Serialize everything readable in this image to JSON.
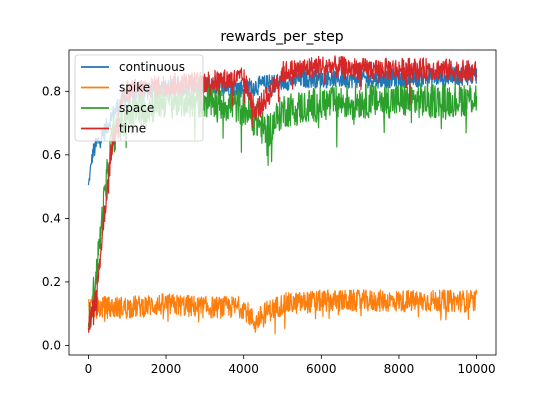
{
  "chart_data": {
    "type": "line",
    "title": "rewards_per_step",
    "xlabel": "",
    "ylabel": "",
    "xlim": [
      -500,
      10500
    ],
    "ylim": [
      -0.03,
      0.93
    ],
    "xticks": [
      0,
      2000,
      4000,
      6000,
      8000,
      10000
    ],
    "xtick_labels": [
      "0",
      "2000",
      "4000",
      "6000",
      "8000",
      "10000"
    ],
    "yticks": [
      0.0,
      0.2,
      0.4,
      0.6,
      0.8
    ],
    "ytick_labels": [
      "0.0",
      "0.2",
      "0.4",
      "0.6",
      "0.8"
    ],
    "grid": false,
    "legend": "top-left",
    "series": [
      {
        "name": "continuous",
        "color": "#1f77b4",
        "x": [
          0,
          100,
          200,
          300,
          400,
          600,
          800,
          1000,
          1500,
          2000,
          3000,
          4000,
          5000,
          5500,
          6000,
          8000,
          10000
        ],
        "y": [
          0.5,
          0.6,
          0.63,
          0.65,
          0.67,
          0.72,
          0.76,
          0.78,
          0.8,
          0.81,
          0.82,
          0.81,
          0.83,
          0.84,
          0.84,
          0.84,
          0.85
        ]
      },
      {
        "name": "spike",
        "color": "#ff7f0e",
        "x": [
          0,
          1000,
          2000,
          3000,
          4000,
          4300,
          4500,
          5000,
          6000,
          7000,
          8000,
          9000,
          10000
        ],
        "y": [
          0.12,
          0.12,
          0.13,
          0.12,
          0.12,
          0.07,
          0.1,
          0.13,
          0.14,
          0.14,
          0.14,
          0.14,
          0.14
        ]
      },
      {
        "name": "space",
        "color": "#2ca02c",
        "x": [
          0,
          200,
          400,
          600,
          1000,
          1500,
          2000,
          3000,
          4000,
          4600,
          5000,
          6000,
          7000,
          8000,
          9000,
          10000
        ],
        "y": [
          0.06,
          0.22,
          0.45,
          0.65,
          0.73,
          0.75,
          0.77,
          0.77,
          0.75,
          0.67,
          0.74,
          0.76,
          0.77,
          0.77,
          0.77,
          0.78
        ]
      },
      {
        "name": "time",
        "color": "#d62728",
        "x": [
          0,
          200,
          400,
          600,
          800,
          1000,
          1500,
          2000,
          3000,
          4000,
          4300,
          4600,
          5000,
          6000,
          7000,
          8000,
          9000,
          10000
        ],
        "y": [
          0.06,
          0.15,
          0.4,
          0.62,
          0.75,
          0.8,
          0.81,
          0.82,
          0.83,
          0.84,
          0.74,
          0.78,
          0.86,
          0.88,
          0.87,
          0.87,
          0.87,
          0.86
        ]
      }
    ]
  }
}
